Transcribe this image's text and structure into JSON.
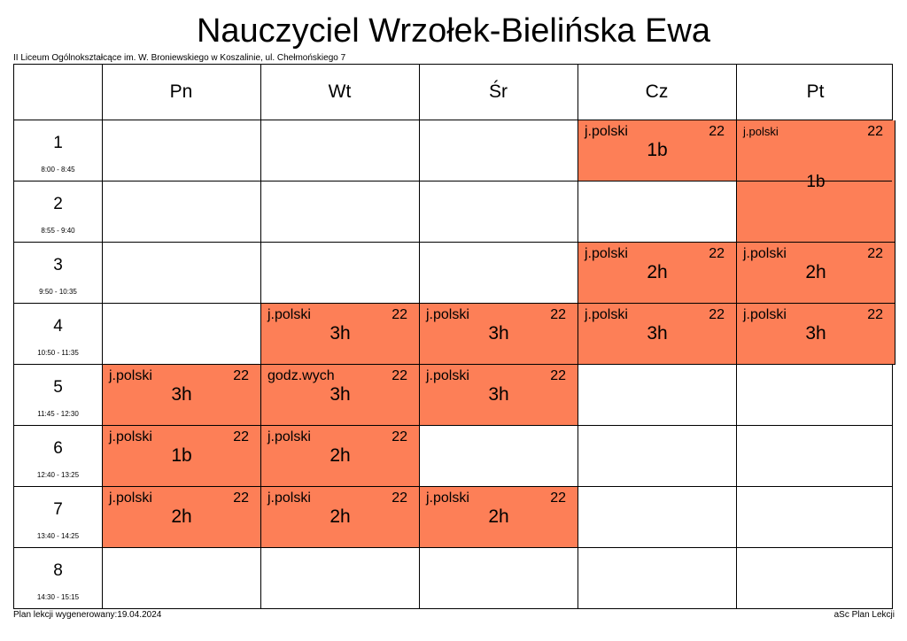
{
  "title": "Nauczyciel Wrzołek-Bielińska Ewa",
  "school": "II Liceum Ogólnokształcące im. W. Broniewskiego w Koszalinie, ul. Chełmońskiego 7",
  "footer": {
    "generated": "Plan lekcji wygenerowany:19.04.2024",
    "app": "aSc Plan Lekcji"
  },
  "days": [
    "Pn",
    "Wt",
    "Śr",
    "Cz",
    "Pt"
  ],
  "periods": [
    {
      "num": "1",
      "time": "8:00 - 8:45"
    },
    {
      "num": "2",
      "time": "8:55 - 9:40"
    },
    {
      "num": "3",
      "time": "9:50 - 10:35"
    },
    {
      "num": "4",
      "time": "10:50 - 11:35"
    },
    {
      "num": "5",
      "time": "11:45 - 12:30"
    },
    {
      "num": "6",
      "time": "12:40 - 13:25"
    },
    {
      "num": "7",
      "time": "13:40 - 14:25"
    },
    {
      "num": "8",
      "time": "14:30 - 15:15"
    }
  ],
  "lesson_color": "#fd7f57",
  "lessons": [
    {
      "day": 3,
      "period": 1,
      "span": 1,
      "subject": "j.polski",
      "room": "22",
      "class": "1b"
    },
    {
      "day": 4,
      "period": 1,
      "span": 2,
      "subject": "j.polski",
      "room": "22",
      "class": "1b"
    },
    {
      "day": 3,
      "period": 3,
      "span": 1,
      "subject": "j.polski",
      "room": "22",
      "class": "2h"
    },
    {
      "day": 4,
      "period": 3,
      "span": 1,
      "subject": "j.polski",
      "room": "22",
      "class": "2h"
    },
    {
      "day": 1,
      "period": 4,
      "span": 1,
      "subject": "j.polski",
      "room": "22",
      "class": "3h"
    },
    {
      "day": 2,
      "period": 4,
      "span": 1,
      "subject": "j.polski",
      "room": "22",
      "class": "3h"
    },
    {
      "day": 3,
      "period": 4,
      "span": 1,
      "subject": "j.polski",
      "room": "22",
      "class": "3h"
    },
    {
      "day": 4,
      "period": 4,
      "span": 1,
      "subject": "j.polski",
      "room": "22",
      "class": "3h"
    },
    {
      "day": 0,
      "period": 5,
      "span": 1,
      "subject": "j.polski",
      "room": "22",
      "class": "3h"
    },
    {
      "day": 1,
      "period": 5,
      "span": 1,
      "subject": "godz.wych",
      "room": "22",
      "class": "3h"
    },
    {
      "day": 2,
      "period": 5,
      "span": 1,
      "subject": "j.polski",
      "room": "22",
      "class": "3h"
    },
    {
      "day": 0,
      "period": 6,
      "span": 1,
      "subject": "j.polski",
      "room": "22",
      "class": "1b"
    },
    {
      "day": 1,
      "period": 6,
      "span": 1,
      "subject": "j.polski",
      "room": "22",
      "class": "2h"
    },
    {
      "day": 0,
      "period": 7,
      "span": 1,
      "subject": "j.polski",
      "room": "22",
      "class": "2h"
    },
    {
      "day": 1,
      "period": 7,
      "span": 1,
      "subject": "j.polski",
      "room": "22",
      "class": "2h"
    },
    {
      "day": 2,
      "period": 7,
      "span": 1,
      "subject": "j.polski",
      "room": "22",
      "class": "2h"
    }
  ]
}
